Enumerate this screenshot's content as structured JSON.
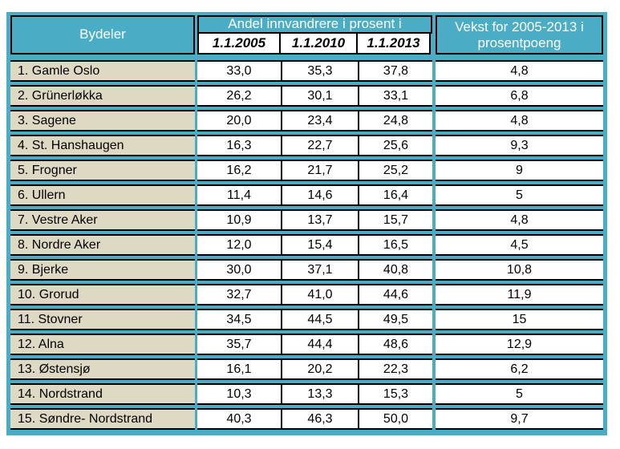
{
  "table": {
    "header": {
      "bydeler_label": "Bydeler",
      "andel_label": "Andel innvandrere i prosent i",
      "date_columns": [
        "1.1.2005",
        "1.1.2010",
        "1.1.2013"
      ],
      "vekst_label": "Vekst for 2005-2013 i prosentpoeng"
    },
    "rows": [
      {
        "bydel": "1. Gamle Oslo",
        "v2005": "33,0",
        "v2010": "35,3",
        "v2013": "37,8",
        "vekst": "4,8"
      },
      {
        "bydel": "2. Grünerløkka",
        "v2005": "26,2",
        "v2010": "30,1",
        "v2013": "33,1",
        "vekst": "6,8"
      },
      {
        "bydel": "3. Sagene",
        "v2005": "20,0",
        "v2010": "23,4",
        "v2013": "24,8",
        "vekst": "4,8"
      },
      {
        "bydel": "4. St. Hanshaugen",
        "v2005": "16,3",
        "v2010": "22,7",
        "v2013": "25,6",
        "vekst": "9,3"
      },
      {
        "bydel": "5. Frogner",
        "v2005": "16,2",
        "v2010": "21,7",
        "v2013": "25,2",
        "vekst": "9"
      },
      {
        "bydel": "6. Ullern",
        "v2005": "11,4",
        "v2010": "14,6",
        "v2013": "16,4",
        "vekst": "5"
      },
      {
        "bydel": "7. Vestre Aker",
        "v2005": "10,9",
        "v2010": "13,7",
        "v2013": "15,7",
        "vekst": "4,8"
      },
      {
        "bydel": "8. Nordre Aker",
        "v2005": "12,0",
        "v2010": "15,4",
        "v2013": "16,5",
        "vekst": "4,5"
      },
      {
        "bydel": "9. Bjerke",
        "v2005": "30,0",
        "v2010": "37,1",
        "v2013": "40,8",
        "vekst": "10,8"
      },
      {
        "bydel": "10. Grorud",
        "v2005": "32,7",
        "v2010": "41,0",
        "v2013": "44,6",
        "vekst": "11,9"
      },
      {
        "bydel": "11. Stovner",
        "v2005": "34,5",
        "v2010": "44,5",
        "v2013": "49,5",
        "vekst": "15"
      },
      {
        "bydel": "12. Alna",
        "v2005": "35,7",
        "v2010": "44,4",
        "v2013": "48,6",
        "vekst": "12,9"
      },
      {
        "bydel": "13. Østensjø",
        "v2005": "16,1",
        "v2010": "20,2",
        "v2013": "22,3",
        "vekst": "6,2"
      },
      {
        "bydel": "14. Nordstrand",
        "v2005": "10,3",
        "v2010": "13,3",
        "v2013": "15,3",
        "vekst": "5"
      },
      {
        "bydel": "15. Søndre- Nordstrand",
        "v2005": "40,3",
        "v2010": "46,3",
        "v2013": "50,0",
        "vekst": "9,7"
      }
    ],
    "colors": {
      "header_teal": "#4BACC6",
      "row_label_beige": "#DDD9C3",
      "cell_white": "#FFFFFF",
      "border_black": "#000000"
    }
  }
}
